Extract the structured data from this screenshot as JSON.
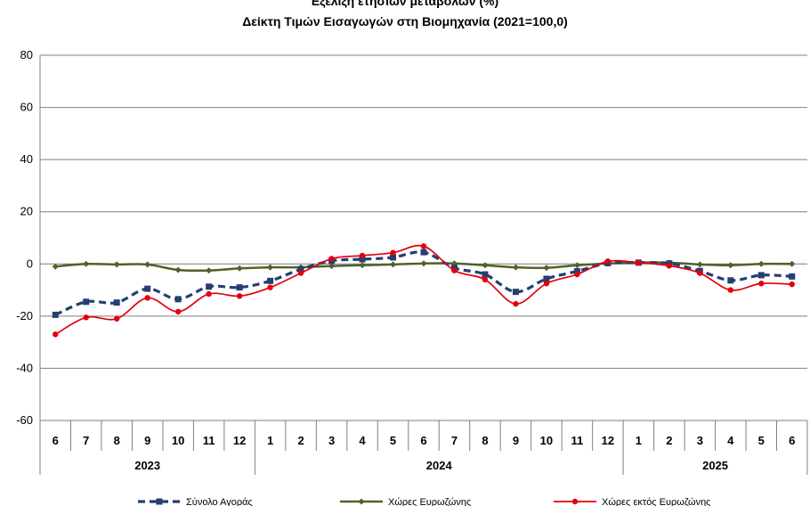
{
  "chart_data": {
    "type": "line",
    "title": "Εξέλιξη ετήσιων μεταβολών (%)",
    "subtitle": "Δείκτη Τιμών Εισαγωγών στη Βιομηχανία (2021=100,0)",
    "xlabel": "",
    "ylabel": "",
    "ylim": [
      -60,
      80
    ],
    "yticks": [
      80,
      60,
      40,
      20,
      0,
      -20,
      -40,
      -60
    ],
    "grid": true,
    "legend_position": "bottom",
    "categories": [
      "6",
      "7",
      "8",
      "9",
      "10",
      "11",
      "12",
      "1",
      "2",
      "3",
      "4",
      "5",
      "6",
      "7",
      "8",
      "9",
      "10",
      "11",
      "12",
      "1",
      "2",
      "3",
      "4",
      "5",
      "6"
    ],
    "year_groups": [
      {
        "label": "2023",
        "start": 0,
        "end": 6
      },
      {
        "label": "2024",
        "start": 7,
        "end": 18
      },
      {
        "label": "2025",
        "start": 19,
        "end": 24
      }
    ],
    "series": [
      {
        "name": "Σύνολο Αγοράς",
        "color": "#243F73",
        "style": "dashed-square",
        "values": [
          -19.5,
          -14.5,
          -14.8,
          -9.5,
          -13.5,
          -8.7,
          -9.0,
          -6.5,
          -2.0,
          1.2,
          1.8,
          2.5,
          4.5,
          -1.5,
          -4.0,
          -10.7,
          -5.7,
          -2.8,
          0.3,
          0.5,
          0.2,
          -2.7,
          -6.3,
          -4.3,
          -4.8
        ]
      },
      {
        "name": "Χώρες Ευρωζώνης",
        "color": "#4F6228",
        "style": "solid-diamond",
        "values": [
          -1.0,
          0.0,
          -0.2,
          -0.2,
          -2.3,
          -2.5,
          -1.7,
          -1.3,
          -1.3,
          -0.8,
          -0.5,
          -0.2,
          0.2,
          0.2,
          -0.5,
          -1.3,
          -1.5,
          -0.5,
          0.2,
          0.5,
          0.5,
          -0.2,
          -0.5,
          0.0,
          0.0
        ]
      },
      {
        "name": "Χώρες εκτός Ευρωζώνης",
        "color": "#E3000F",
        "style": "solid-circle",
        "values": [
          -27.0,
          -20.5,
          -21.0,
          -13.0,
          -18.3,
          -11.5,
          -12.3,
          -9.0,
          -3.5,
          2.0,
          3.2,
          4.3,
          6.8,
          -2.5,
          -6.0,
          -15.3,
          -7.5,
          -4.0,
          1.0,
          0.5,
          -0.7,
          -3.5,
          -10.0,
          -7.5,
          -7.8
        ]
      }
    ]
  }
}
